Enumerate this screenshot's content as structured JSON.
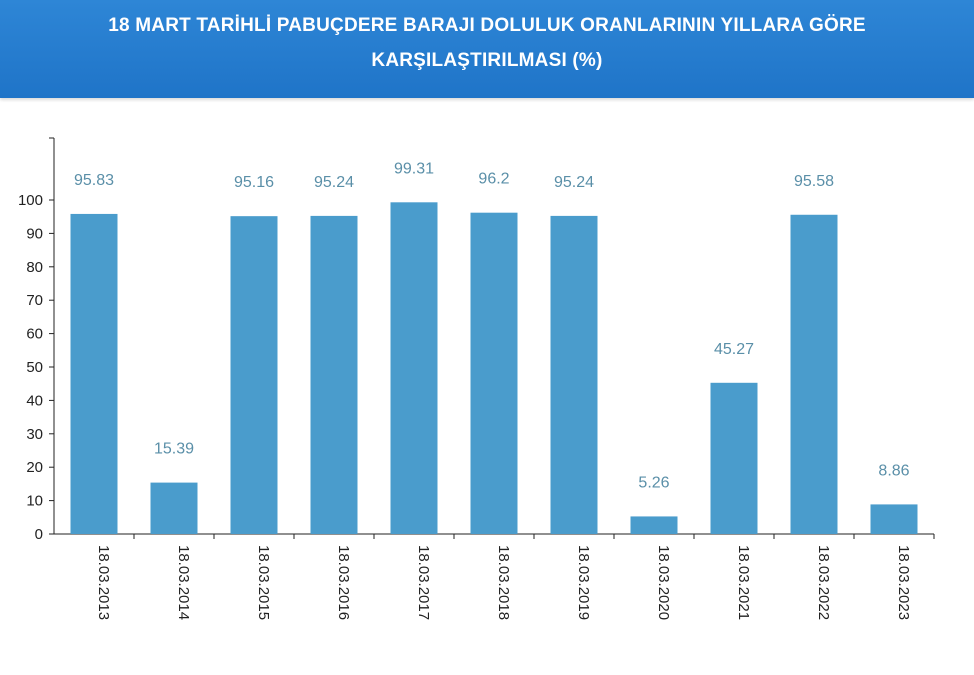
{
  "header": {
    "title_line1": "18 MART TARİHLİ PABUÇDERE BARAJI DOLULUK ORANLARININ YILLARA GÖRE",
    "title_line2": "KARŞILAŞTIRILMASI (%)"
  },
  "chart_data": {
    "type": "bar",
    "title": "18 MART TARİHLİ PABUÇDERE BARAJI DOLULUK ORANLARININ YILLARA GÖRE KARŞILAŞTIRILMASI (%)",
    "categories": [
      "18.03.2013",
      "18.03.2014",
      "18.03.2015",
      "18.03.2016",
      "18.03.2017",
      "18.03.2018",
      "18.03.2019",
      "18.03.2020",
      "18.03.2021",
      "18.03.2022",
      "18.03.2023"
    ],
    "values": [
      95.83,
      15.39,
      95.16,
      95.24,
      99.31,
      96.2,
      95.24,
      5.26,
      45.27,
      95.58,
      8.86
    ],
    "data_labels": [
      "95.83",
      "15.39",
      "95.16",
      "95.24",
      "99.31",
      "96.2",
      "95.24",
      "5.26",
      "45.27",
      "95.58",
      "8.86"
    ],
    "yticks": [
      0,
      10,
      20,
      30,
      40,
      50,
      60,
      70,
      80,
      90,
      100
    ],
    "ylim": [
      0,
      100
    ],
    "xlabel": "",
    "ylabel": "",
    "grid": false,
    "bar_color": "#4a9ccc",
    "label_color": "#5a8fa8",
    "header_color": "#2a80d0"
  }
}
